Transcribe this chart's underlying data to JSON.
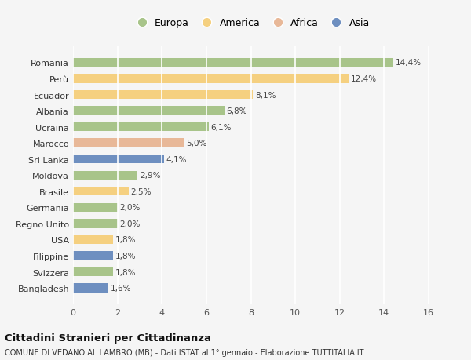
{
  "countries": [
    "Romania",
    "Perù",
    "Ecuador",
    "Albania",
    "Ucraina",
    "Marocco",
    "Sri Lanka",
    "Moldova",
    "Brasile",
    "Germania",
    "Regno Unito",
    "USA",
    "Filippine",
    "Svizzera",
    "Bangladesh"
  ],
  "values": [
    14.4,
    12.4,
    8.1,
    6.8,
    6.1,
    5.0,
    4.1,
    2.9,
    2.5,
    2.0,
    2.0,
    1.8,
    1.8,
    1.8,
    1.6
  ],
  "labels": [
    "14,4%",
    "12,4%",
    "8,1%",
    "6,8%",
    "6,1%",
    "5,0%",
    "4,1%",
    "2,9%",
    "2,5%",
    "2,0%",
    "2,0%",
    "1,8%",
    "1,8%",
    "1,8%",
    "1,6%"
  ],
  "regions": [
    "Europa",
    "America",
    "America",
    "Europa",
    "Europa",
    "Africa",
    "Asia",
    "Europa",
    "America",
    "Europa",
    "Europa",
    "America",
    "Asia",
    "Europa",
    "Asia"
  ],
  "colors": {
    "Europa": "#a8c48a",
    "America": "#f5d080",
    "Africa": "#e8b898",
    "Asia": "#6e8fc0"
  },
  "legend_order": [
    "Europa",
    "America",
    "Africa",
    "Asia"
  ],
  "title": "Cittadini Stranieri per Cittadinanza",
  "subtitle": "COMUNE DI VEDANO AL LAMBRO (MB) - Dati ISTAT al 1° gennaio - Elaborazione TUTTITALIA.IT",
  "xlim": [
    0,
    16
  ],
  "xticks": [
    0,
    2,
    4,
    6,
    8,
    10,
    12,
    14,
    16
  ],
  "background_color": "#f5f5f5",
  "grid_color": "#ffffff",
  "bar_height": 0.55
}
